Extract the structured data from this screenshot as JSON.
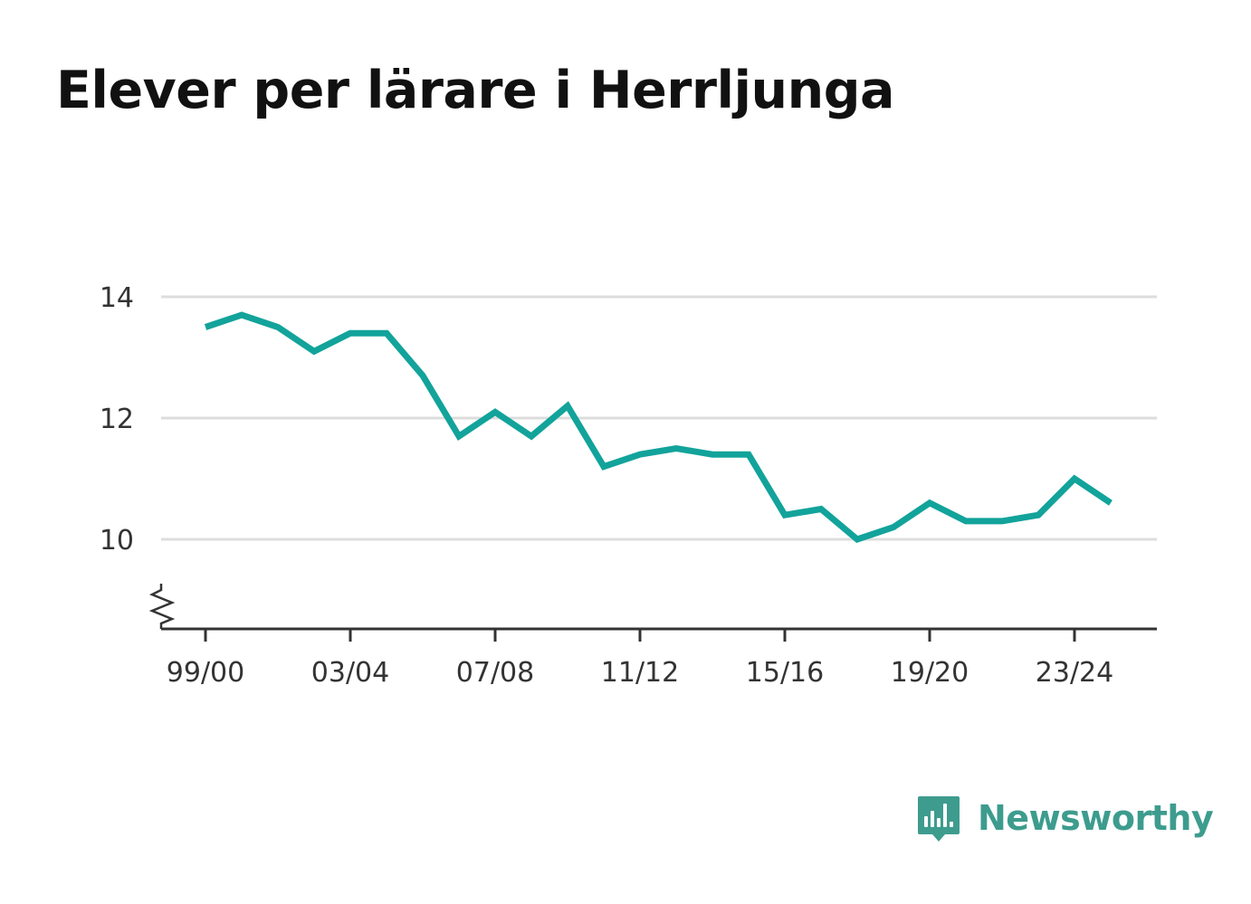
{
  "title": "Elever per lärare i Herrljunga",
  "brand": {
    "name": "Newsworthy",
    "icon": "newsworthy-logo-icon",
    "color": "#3d9c8e"
  },
  "colors": {
    "line": "#12a39b",
    "grid": "#dddddd",
    "axis": "#333333",
    "text": "#333333"
  },
  "chart_data": {
    "type": "line",
    "title": "Elever per lärare i Herrljunga",
    "xlabel": "",
    "ylabel": "",
    "x": [
      "99/00",
      "00/01",
      "01/02",
      "02/03",
      "03/04",
      "04/05",
      "05/06",
      "06/07",
      "07/08",
      "08/09",
      "09/10",
      "10/11",
      "11/12",
      "12/13",
      "13/14",
      "14/15",
      "15/16",
      "16/17",
      "17/18",
      "18/19",
      "19/20",
      "20/21",
      "21/22",
      "22/23",
      "23/24",
      "24/25"
    ],
    "x_tick_labels": [
      "99/00",
      "03/04",
      "07/08",
      "11/12",
      "15/16",
      "19/20",
      "23/24"
    ],
    "y_ticks": [
      10,
      12,
      14
    ],
    "ylim": [
      8.5,
      14
    ],
    "y_axis_break": true,
    "grid": true,
    "series": [
      {
        "values": [
          13.5,
          13.7,
          13.5,
          13.1,
          13.4,
          13.4,
          12.7,
          11.7,
          12.1,
          11.7,
          12.2,
          11.2,
          11.4,
          11.5,
          11.4,
          11.4,
          10.4,
          10.5,
          10.0,
          10.2,
          10.6,
          10.3,
          10.3,
          10.4,
          11.0,
          10.6
        ]
      }
    ]
  }
}
